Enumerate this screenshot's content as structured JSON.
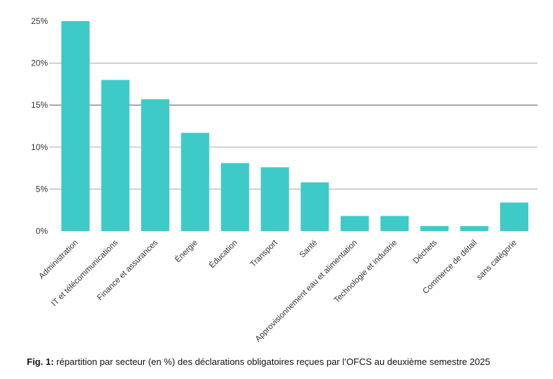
{
  "chart_data": {
    "type": "bar",
    "categories": [
      "Administration",
      "IT et télécommunications",
      "Finance et assurances",
      "Énergie",
      "Éducation",
      "Transport",
      "Santé",
      "Approvisionnement eau et alimentation",
      "Technologie et industrie",
      "Déchets",
      "Commerce de détail",
      "sans catégorie"
    ],
    "values": [
      25.0,
      18.0,
      15.7,
      11.7,
      8.1,
      7.6,
      5.8,
      1.8,
      1.8,
      0.6,
      0.6,
      3.4
    ],
    "yticks": [
      "0%",
      "5%",
      "10%",
      "15%",
      "20%",
      "25%"
    ],
    "ylim": [
      0,
      25
    ],
    "grid": true,
    "bar_color": "#3ecbc8",
    "title": "",
    "xlabel": "",
    "ylabel": ""
  },
  "caption": {
    "label": "Fig. 1:",
    "text": " répartition par secteur (en %) des déclarations obligatoires reçues par l’OFCS au deuxième semestre 2025"
  }
}
